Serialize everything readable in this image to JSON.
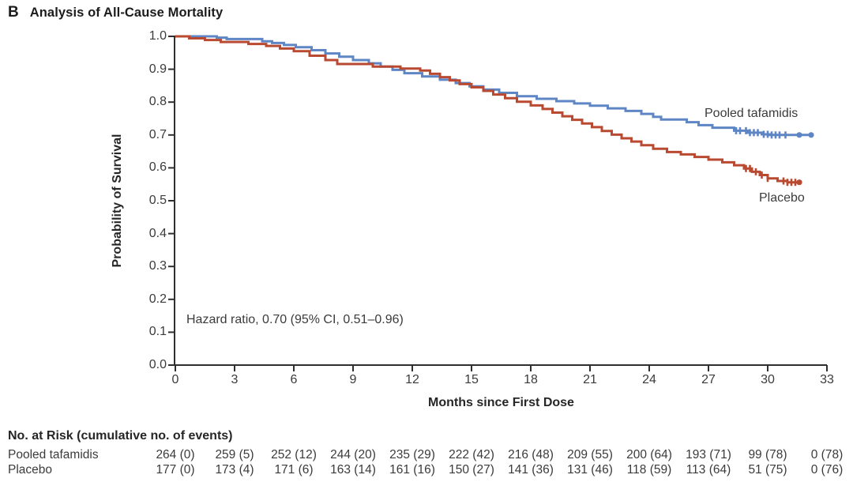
{
  "figure": {
    "panel_letter": "B",
    "title": "Analysis of All-Cause Mortality"
  },
  "chart_data": {
    "type": "line",
    "subtype": "kaplan_meier_step_survival",
    "xlabel": "Months since First Dose",
    "ylabel": "Probability of Survival",
    "xlim": [
      0,
      33
    ],
    "ylim": [
      0.0,
      1.0
    ],
    "xticks": [
      0,
      3,
      6,
      9,
      12,
      15,
      18,
      21,
      24,
      27,
      30,
      33
    ],
    "yticks": [
      "1.0",
      "0.9",
      "0.8",
      "0.7",
      "0.6",
      "0.5",
      "0.4",
      "0.3",
      "0.2",
      "0.1",
      "0.0"
    ],
    "grid": false,
    "legend_position": "labels-at-curve-ends",
    "annotation": "Hazard ratio, 0.70 (95% CI, 0.51–0.96)",
    "series": [
      {
        "name": "Pooled tafamidis",
        "color": "#5f86c4",
        "points": [
          [
            0,
            1.0
          ],
          [
            2.1,
            0.996
          ],
          [
            2.6,
            0.992
          ],
          [
            4.4,
            0.985
          ],
          [
            4.9,
            0.98
          ],
          [
            5.5,
            0.974
          ],
          [
            6.1,
            0.967
          ],
          [
            6.9,
            0.958
          ],
          [
            7.6,
            0.948
          ],
          [
            8.3,
            0.938
          ],
          [
            9.0,
            0.928
          ],
          [
            9.8,
            0.918
          ],
          [
            10.4,
            0.908
          ],
          [
            11.0,
            0.898
          ],
          [
            11.6,
            0.888
          ],
          [
            12.5,
            0.878
          ],
          [
            13.4,
            0.868
          ],
          [
            14.2,
            0.858
          ],
          [
            14.9,
            0.848
          ],
          [
            15.6,
            0.838
          ],
          [
            16.4,
            0.828
          ],
          [
            17.3,
            0.818
          ],
          [
            18.3,
            0.81
          ],
          [
            19.3,
            0.803
          ],
          [
            20.2,
            0.796
          ],
          [
            21.0,
            0.789
          ],
          [
            21.9,
            0.781
          ],
          [
            22.8,
            0.773
          ],
          [
            23.6,
            0.764
          ],
          [
            24.2,
            0.755
          ],
          [
            24.6,
            0.747
          ],
          [
            25.9,
            0.739
          ],
          [
            26.5,
            0.73
          ],
          [
            27.2,
            0.722
          ],
          [
            28.3,
            0.713
          ],
          [
            29.0,
            0.707
          ],
          [
            29.7,
            0.702
          ],
          [
            30.1,
            0.7
          ],
          [
            32.2,
            0.7
          ]
        ],
        "censor_tick_months": [
          28.4,
          28.6,
          28.9,
          29.1,
          29.3,
          29.5,
          29.8,
          30.0,
          30.2,
          30.4,
          30.6,
          30.9
        ],
        "end_dots": [
          [
            31.6,
            0.7
          ],
          [
            32.2,
            0.7
          ]
        ]
      },
      {
        "name": "Placebo",
        "color": "#b94a31",
        "points": [
          [
            0,
            1.0
          ],
          [
            0.7,
            0.994
          ],
          [
            1.5,
            0.989
          ],
          [
            2.3,
            0.983
          ],
          [
            3.7,
            0.977
          ],
          [
            4.6,
            0.971
          ],
          [
            5.3,
            0.963
          ],
          [
            6.0,
            0.955
          ],
          [
            6.8,
            0.941
          ],
          [
            7.6,
            0.928
          ],
          [
            8.2,
            0.916
          ],
          [
            10.0,
            0.908
          ],
          [
            11.4,
            0.902
          ],
          [
            12.4,
            0.896
          ],
          [
            12.9,
            0.886
          ],
          [
            13.4,
            0.876
          ],
          [
            13.9,
            0.866
          ],
          [
            14.4,
            0.855
          ],
          [
            15.0,
            0.845
          ],
          [
            15.6,
            0.834
          ],
          [
            16.1,
            0.823
          ],
          [
            16.7,
            0.812
          ],
          [
            17.3,
            0.801
          ],
          [
            18.0,
            0.79
          ],
          [
            18.6,
            0.779
          ],
          [
            19.1,
            0.768
          ],
          [
            19.6,
            0.757
          ],
          [
            20.1,
            0.746
          ],
          [
            20.6,
            0.735
          ],
          [
            21.1,
            0.724
          ],
          [
            21.6,
            0.712
          ],
          [
            22.1,
            0.701
          ],
          [
            22.6,
            0.69
          ],
          [
            23.1,
            0.68
          ],
          [
            23.6,
            0.669
          ],
          [
            24.2,
            0.658
          ],
          [
            24.9,
            0.648
          ],
          [
            25.6,
            0.641
          ],
          [
            26.3,
            0.633
          ],
          [
            27.0,
            0.625
          ],
          [
            27.7,
            0.617
          ],
          [
            28.3,
            0.608
          ],
          [
            28.8,
            0.598
          ],
          [
            29.2,
            0.588
          ],
          [
            29.6,
            0.578
          ],
          [
            30.0,
            0.568
          ],
          [
            30.5,
            0.56
          ],
          [
            31.0,
            0.556
          ],
          [
            31.6,
            0.556
          ]
        ],
        "censor_tick_months": [
          28.9,
          29.1,
          29.4,
          29.7,
          30.0,
          30.8,
          31.0,
          31.2,
          31.4
        ],
        "end_dots": [
          [
            31.6,
            0.556
          ]
        ]
      }
    ]
  },
  "risk_table": {
    "header": "No. at Risk (cumulative no. of events)",
    "months": [
      0,
      3,
      6,
      9,
      12,
      15,
      18,
      21,
      24,
      27,
      30,
      33
    ],
    "rows": [
      {
        "label": "Pooled tafamidis",
        "values": [
          "264 (0)",
          "259 (5)",
          "252 (12)",
          "244 (20)",
          "235 (29)",
          "222 (42)",
          "216 (48)",
          "209 (55)",
          "200 (64)",
          "193 (71)",
          "99 (78)",
          "0 (78)"
        ]
      },
      {
        "label": "Placebo",
        "values": [
          "177 (0)",
          "173 (4)",
          "171 (6)",
          "163 (14)",
          "161 (16)",
          "150 (27)",
          "141 (36)",
          "131 (46)",
          "118 (59)",
          "113 (64)",
          "51 (75)",
          "0 (76)"
        ]
      }
    ]
  },
  "colors": {
    "axis": "#2f2f2f",
    "tafamidis_line": "#5f86c4",
    "placebo_line": "#b94a31",
    "text": "#3b3b3b"
  }
}
